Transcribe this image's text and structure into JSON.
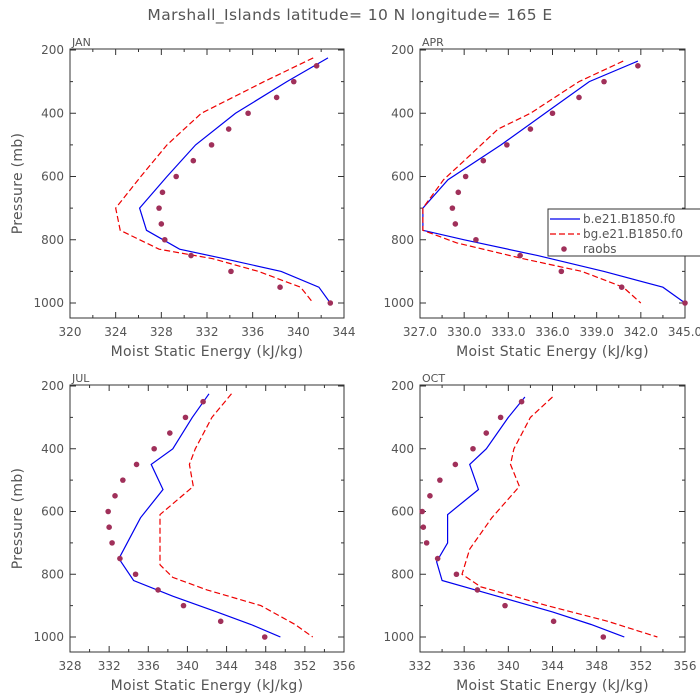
{
  "title": "Marshall_Islands  latitude= 10 N longitude= 165 E",
  "colors": {
    "model_a": "#0000ee",
    "model_b": "#ee0000",
    "raobs": "#a0305a",
    "axis": "#333333",
    "text": "#555555"
  },
  "legend": {
    "placement": "right of APR panel",
    "entries": [
      {
        "label": "b.e21.B1850.f0",
        "style": "solid",
        "color": "#0000ee"
      },
      {
        "label": "bg.e21.B1850.f0",
        "style": "dashed",
        "color": "#ee0000"
      },
      {
        "label": "raobs",
        "style": "dots",
        "color": "#a0305a"
      }
    ]
  },
  "chart_data": [
    {
      "type": "line",
      "panel_label": "JAN",
      "xlabel": "Moist Static Energy (kJ/kg)",
      "ylabel": "Pressure (mb)",
      "xlim": [
        320,
        344
      ],
      "ylim": [
        1000,
        200
      ],
      "xticks": [
        320,
        324,
        328,
        332,
        336,
        340,
        344
      ],
      "xtick_labels": [
        "320",
        "324",
        "328",
        "332",
        "336",
        "340",
        "344"
      ],
      "yticks": [
        200,
        400,
        600,
        800,
        1000
      ],
      "ytick_labels": [
        "200",
        "400",
        "600",
        "800",
        "1000"
      ],
      "series": [
        {
          "key": "a",
          "style": "solid",
          "color": "#0000ee",
          "points": [
            [
              342.6,
              225
            ],
            [
              339,
              300
            ],
            [
              334.5,
              400
            ],
            [
              331,
              500
            ],
            [
              328.5,
              600
            ],
            [
              326.1,
              700
            ],
            [
              326.7,
              770
            ],
            [
              329.6,
              830
            ],
            [
              333.5,
              860
            ],
            [
              338.5,
              900
            ],
            [
              341.8,
              950
            ],
            [
              342.8,
              1000
            ]
          ]
        },
        {
          "key": "b",
          "style": "dashed",
          "color": "#ee0000",
          "points": [
            [
              341.3,
              225
            ],
            [
              337,
              300
            ],
            [
              331.5,
              400
            ],
            [
              328.5,
              500
            ],
            [
              326.2,
              600
            ],
            [
              324,
              700
            ],
            [
              324.4,
              770
            ],
            [
              327.8,
              830
            ],
            [
              332.5,
              860
            ],
            [
              336.5,
              900
            ],
            [
              340.2,
              950
            ],
            [
              341.3,
              1000
            ]
          ]
        },
        {
          "key": "raobs",
          "style": "dots",
          "color": "#a0305a",
          "points": [
            [
              341.6,
              250
            ],
            [
              339.6,
              300
            ],
            [
              338.1,
              350
            ],
            [
              335.6,
              400
            ],
            [
              333.9,
              450
            ],
            [
              332.4,
              500
            ],
            [
              330.8,
              550
            ],
            [
              329.3,
              600
            ],
            [
              328.1,
              650
            ],
            [
              327.8,
              700
            ],
            [
              328.0,
              750
            ],
            [
              328.3,
              800
            ],
            [
              330.6,
              850
            ],
            [
              334.1,
              900
            ],
            [
              338.4,
              950
            ],
            [
              342.8,
              1000
            ]
          ]
        }
      ]
    },
    {
      "type": "line",
      "panel_label": "APR",
      "xlabel": "Moist Static Energy (kJ/kg)",
      "ylabel": "Pressure (mb)",
      "xlim": [
        327,
        345
      ],
      "ylim": [
        1000,
        200
      ],
      "xticks": [
        327,
        330,
        333,
        336,
        339,
        342,
        345
      ],
      "xtick_labels": [
        "327.0",
        "330.0",
        "333.0",
        "336.0",
        "339.0",
        "342.0",
        "345.0"
      ],
      "yticks": [
        200,
        400,
        600,
        800,
        1000
      ],
      "ytick_labels": [
        "200",
        "400",
        "600",
        "800",
        "1000"
      ],
      "series": [
        {
          "key": "a",
          "style": "solid",
          "color": "#0000ee",
          "points": [
            [
              341.8,
              235
            ],
            [
              338.5,
              300
            ],
            [
              335.5,
              400
            ],
            [
              332.5,
              500
            ],
            [
              328.9,
              610
            ],
            [
              327.2,
              700
            ],
            [
              327.2,
              770
            ],
            [
              330,
              800
            ],
            [
              335,
              850
            ],
            [
              339.5,
              900
            ],
            [
              343.5,
              950
            ],
            [
              345,
              1000
            ]
          ]
        },
        {
          "key": "b",
          "style": "dashed",
          "color": "#ee0000",
          "points": [
            [
              340.8,
              235
            ],
            [
              337.8,
              300
            ],
            [
              334.5,
              400
            ],
            [
              332.3,
              450
            ],
            [
              330,
              550
            ],
            [
              328.6,
              610
            ],
            [
              327.2,
              700
            ],
            [
              327.2,
              770
            ],
            [
              329.5,
              810
            ],
            [
              334,
              860
            ],
            [
              338,
              900
            ],
            [
              340.8,
              950
            ],
            [
              342,
              1000
            ]
          ]
        },
        {
          "key": "raobs",
          "style": "dots",
          "color": "#a0305a",
          "points": [
            [
              341.8,
              250
            ],
            [
              339.5,
              300
            ],
            [
              337.8,
              350
            ],
            [
              336.0,
              400
            ],
            [
              334.5,
              450
            ],
            [
              332.9,
              500
            ],
            [
              331.3,
              550
            ],
            [
              330.1,
              600
            ],
            [
              329.6,
              650
            ],
            [
              329.2,
              700
            ],
            [
              329.4,
              750
            ],
            [
              330.8,
              800
            ],
            [
              333.8,
              850
            ],
            [
              336.6,
              900
            ],
            [
              340.7,
              950
            ],
            [
              345.0,
              1000
            ]
          ]
        }
      ]
    },
    {
      "type": "line",
      "panel_label": "JUL",
      "xlabel": "Moist Static Energy (kJ/kg)",
      "ylabel": "Pressure (mb)",
      "xlim": [
        328,
        356
      ],
      "ylim": [
        1000,
        200
      ],
      "xticks": [
        328,
        332,
        336,
        340,
        344,
        348,
        352,
        356
      ],
      "xtick_labels": [
        "328",
        "332",
        "336",
        "340",
        "344",
        "348",
        "352",
        "356"
      ],
      "yticks": [
        200,
        400,
        600,
        800,
        1000
      ],
      "ytick_labels": [
        "200",
        "400",
        "600",
        "800",
        "1000"
      ],
      "series": [
        {
          "key": "a",
          "style": "solid",
          "color": "#0000ee",
          "points": [
            [
              342.2,
              225
            ],
            [
              340.5,
              300
            ],
            [
              338.5,
              400
            ],
            [
              336.3,
              450
            ],
            [
              337.5,
              530
            ],
            [
              335.2,
              620
            ],
            [
              333,
              750
            ],
            [
              334.5,
              820
            ],
            [
              338.5,
              870
            ],
            [
              343,
              920
            ],
            [
              346.5,
              960
            ],
            [
              349.5,
              1000
            ]
          ]
        },
        {
          "key": "b",
          "style": "dashed",
          "color": "#ee0000",
          "points": [
            [
              344.5,
              225
            ],
            [
              342.5,
              300
            ],
            [
              340.8,
              400
            ],
            [
              340.2,
              450
            ],
            [
              340.6,
              520
            ],
            [
              337.2,
              610
            ],
            [
              337.2,
              770
            ],
            [
              338.5,
              810
            ],
            [
              342,
              850
            ],
            [
              347.5,
              900
            ],
            [
              351,
              960
            ],
            [
              352.8,
              1000
            ]
          ]
        },
        {
          "key": "raobs",
          "style": "dots",
          "color": "#a0305a",
          "points": [
            [
              341.6,
              250
            ],
            [
              339.8,
              300
            ],
            [
              338.2,
              350
            ],
            [
              336.6,
              400
            ],
            [
              334.8,
              450
            ],
            [
              333.4,
              500
            ],
            [
              332.6,
              550
            ],
            [
              331.9,
              600
            ],
            [
              332.0,
              650
            ],
            [
              332.3,
              700
            ],
            [
              333.1,
              750
            ],
            [
              334.7,
              800
            ],
            [
              337.0,
              850
            ],
            [
              339.6,
              900
            ],
            [
              343.4,
              950
            ],
            [
              347.9,
              1000
            ]
          ]
        }
      ]
    },
    {
      "type": "line",
      "panel_label": "OCT",
      "xlabel": "Moist Static Energy (kJ/kg)",
      "ylabel": "Pressure (mb)",
      "xlim": [
        332,
        356
      ],
      "ylim": [
        1000,
        200
      ],
      "xticks": [
        332,
        336,
        340,
        344,
        348,
        352,
        356
      ],
      "xtick_labels": [
        "332",
        "336",
        "340",
        "344",
        "348",
        "352",
        "356"
      ],
      "yticks": [
        200,
        400,
        600,
        800,
        1000
      ],
      "ytick_labels": [
        "200",
        "400",
        "600",
        "800",
        "1000"
      ],
      "series": [
        {
          "key": "a",
          "style": "solid",
          "color": "#0000ee",
          "points": [
            [
              341.5,
              235
            ],
            [
              340,
              300
            ],
            [
              338,
              400
            ],
            [
              336.5,
              450
            ],
            [
              337.3,
              530
            ],
            [
              334.5,
              610
            ],
            [
              334.5,
              700
            ],
            [
              333.5,
              760
            ],
            [
              334,
              820
            ],
            [
              338,
              860
            ],
            [
              344,
              920
            ],
            [
              347.5,
              960
            ],
            [
              350.5,
              1000
            ]
          ]
        },
        {
          "key": "b",
          "style": "dashed",
          "color": "#ee0000",
          "points": [
            [
              344,
              235
            ],
            [
              342,
              300
            ],
            [
              340.5,
              400
            ],
            [
              340.2,
              450
            ],
            [
              341,
              520
            ],
            [
              338.5,
              620
            ],
            [
              336.5,
              720
            ],
            [
              335.8,
              800
            ],
            [
              337.5,
              840
            ],
            [
              343.5,
              900
            ],
            [
              349,
              950
            ],
            [
              353.5,
              1000
            ]
          ]
        },
        {
          "key": "raobs",
          "style": "dots",
          "color": "#a0305a",
          "points": [
            [
              341.2,
              250
            ],
            [
              339.3,
              300
            ],
            [
              338.0,
              350
            ],
            [
              336.8,
              400
            ],
            [
              335.2,
              450
            ],
            [
              333.8,
              500
            ],
            [
              332.9,
              550
            ],
            [
              332.2,
              600
            ],
            [
              332.3,
              650
            ],
            [
              332.6,
              700
            ],
            [
              333.6,
              750
            ],
            [
              335.3,
              800
            ],
            [
              337.2,
              850
            ],
            [
              339.7,
              900
            ],
            [
              344.1,
              950
            ],
            [
              348.6,
              1000
            ]
          ]
        }
      ]
    }
  ]
}
